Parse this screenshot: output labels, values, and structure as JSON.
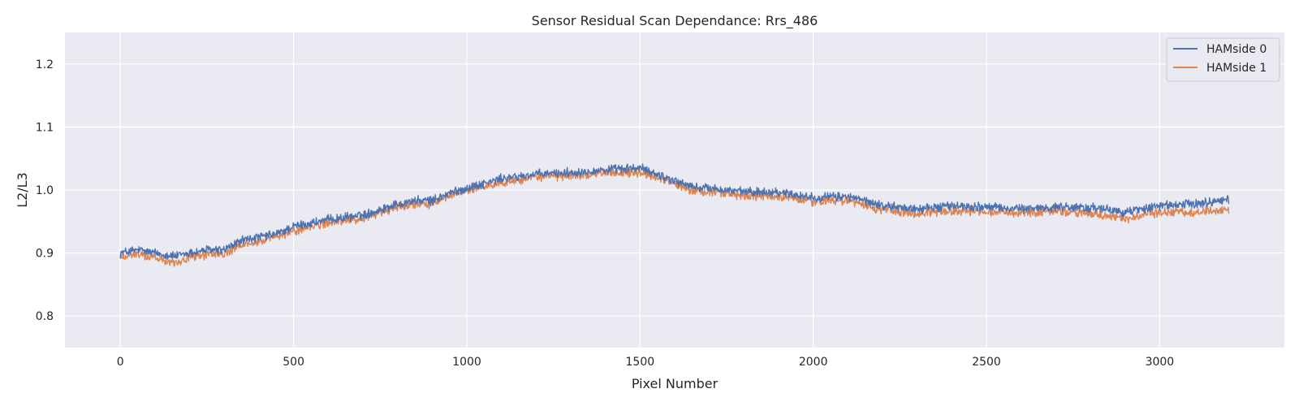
{
  "chart_data": {
    "type": "line",
    "title": "Sensor Residual Scan Dependance: Rrs_486",
    "xlabel": "Pixel Number",
    "ylabel": "L2/L3",
    "xlim": [
      -160,
      3360
    ],
    "ylim": [
      0.75,
      1.25
    ],
    "xticks": [
      0,
      500,
      1000,
      1500,
      2000,
      2500,
      3000
    ],
    "yticks": [
      0.8,
      0.9,
      1.0,
      1.1,
      1.2
    ],
    "xtick_labels": [
      "0",
      "500",
      "1000",
      "1500",
      "2000",
      "2500",
      "3000"
    ],
    "ytick_labels": [
      "0.8",
      "0.9",
      "1.0",
      "1.1",
      "1.2"
    ],
    "grid": true,
    "legend_position": "top-right",
    "series": [
      {
        "name": "HAMside 0",
        "color": "#4c72b0",
        "x": [
          0,
          50,
          100,
          160,
          200,
          250,
          300,
          350,
          400,
          450,
          500,
          600,
          700,
          800,
          850,
          900,
          950,
          1000,
          1100,
          1200,
          1300,
          1400,
          1500,
          1550,
          1600,
          1650,
          1700,
          1800,
          1900,
          2000,
          2100,
          2200,
          2300,
          2400,
          2500,
          2600,
          2700,
          2800,
          2900,
          3000,
          3100,
          3200
        ],
        "values": [
          0.9,
          0.905,
          0.9,
          0.895,
          0.9,
          0.905,
          0.905,
          0.92,
          0.925,
          0.93,
          0.942,
          0.953,
          0.96,
          0.978,
          0.983,
          0.983,
          0.995,
          1.003,
          1.018,
          1.025,
          1.028,
          1.032,
          1.035,
          1.025,
          1.015,
          1.005,
          1.003,
          0.997,
          0.997,
          0.988,
          0.99,
          0.975,
          0.97,
          0.975,
          0.973,
          0.97,
          0.973,
          0.972,
          0.965,
          0.975,
          0.978,
          0.985
        ]
      },
      {
        "name": "HAMside 1",
        "color": "#dd8452",
        "x": [
          0,
          50,
          100,
          160,
          200,
          250,
          300,
          350,
          400,
          450,
          500,
          600,
          700,
          800,
          850,
          900,
          950,
          1000,
          1100,
          1200,
          1300,
          1400,
          1500,
          1550,
          1600,
          1650,
          1700,
          1800,
          1900,
          2000,
          2100,
          2200,
          2300,
          2400,
          2500,
          2600,
          2700,
          2800,
          2900,
          3000,
          3100,
          3200
        ],
        "values": [
          0.893,
          0.898,
          0.893,
          0.885,
          0.893,
          0.898,
          0.898,
          0.913,
          0.918,
          0.925,
          0.935,
          0.948,
          0.955,
          0.973,
          0.978,
          0.978,
          0.991,
          0.999,
          1.012,
          1.02,
          1.023,
          1.027,
          1.028,
          1.02,
          1.01,
          0.998,
          0.998,
          0.99,
          0.99,
          0.982,
          0.983,
          0.968,
          0.963,
          0.968,
          0.966,
          0.963,
          0.966,
          0.963,
          0.955,
          0.965,
          0.965,
          0.968
        ]
      }
    ]
  }
}
